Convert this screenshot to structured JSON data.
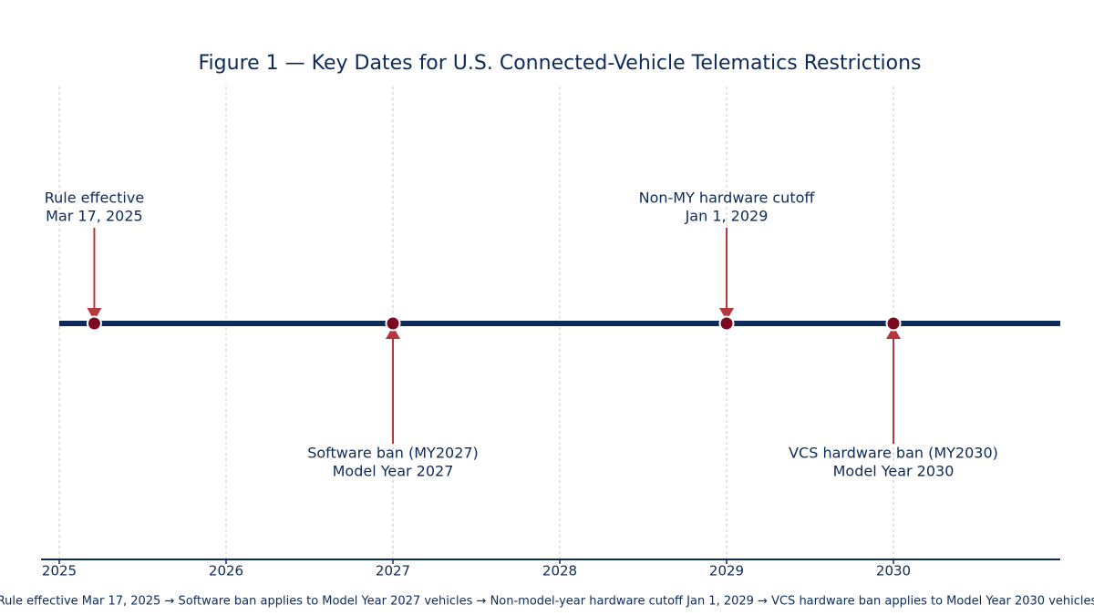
{
  "chart_data": {
    "type": "timeline",
    "title": "Figure 1 — Key Dates for U.S. Connected-Vehicle Telematics Restrictions",
    "caption": "Rule effective Mar 17, 2025 → Software ban applies to Model Year 2027 vehicles → Non-model-year hardware cutoff Jan 1, 2029 → VCS hardware ban applies to Model Year 2030 vehicles",
    "xlim": [
      2025,
      2031
    ],
    "xticks": [
      2025,
      2026,
      2027,
      2028,
      2029,
      2030
    ],
    "grid": true,
    "line_color": "#0d2b5a",
    "marker_color": "#7a0a20",
    "arrow_color": "#b5383f",
    "events": [
      {
        "x": 2025.21,
        "label": "Rule effective",
        "date": "Mar 17, 2025",
        "position": "above"
      },
      {
        "x": 2027,
        "label": "Software ban (MY2027)",
        "date": "Model Year 2027",
        "position": "below"
      },
      {
        "x": 2029,
        "label": "Non-MY hardware cutoff",
        "date": "Jan 1, 2029",
        "position": "above"
      },
      {
        "x": 2030,
        "label": "VCS hardware ban (MY2030)",
        "date": "Model Year 2030",
        "position": "below"
      }
    ]
  }
}
